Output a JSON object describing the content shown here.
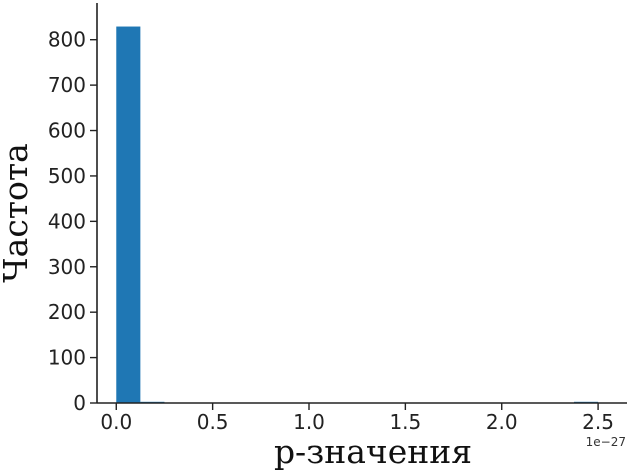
{
  "chart_data": {
    "type": "bar",
    "title": "",
    "xlabel": "р-значения",
    "ylabel": "Частота",
    "x_offset_label": "1e−27",
    "xlim": [
      -0.1,
      2.65
    ],
    "ylim": [
      0,
      850
    ],
    "grid": false,
    "x_ticks": [
      {
        "value": 0.0,
        "label": "0.0"
      },
      {
        "value": 0.5,
        "label": "0.5"
      },
      {
        "value": 1.0,
        "label": "1.0"
      },
      {
        "value": 1.5,
        "label": "1.5"
      },
      {
        "value": 2.0,
        "label": "2.0"
      },
      {
        "value": 2.5,
        "label": "2.5"
      }
    ],
    "y_ticks": [
      {
        "value": 0,
        "label": "0"
      },
      {
        "value": 100,
        "label": "100"
      },
      {
        "value": 200,
        "label": "200"
      },
      {
        "value": 300,
        "label": "300"
      },
      {
        "value": 400,
        "label": "400"
      },
      {
        "value": 500,
        "label": "500"
      },
      {
        "value": 600,
        "label": "600"
      },
      {
        "value": 700,
        "label": "700"
      },
      {
        "value": 800,
        "label": "800"
      }
    ],
    "bar_color": "#1f77b4",
    "bins": [
      {
        "start": 0.0,
        "end": 0.125,
        "count": 829
      },
      {
        "start": 0.125,
        "end": 0.25,
        "count": 1
      },
      {
        "start": 2.375,
        "end": 2.5,
        "count": 1
      }
    ]
  }
}
